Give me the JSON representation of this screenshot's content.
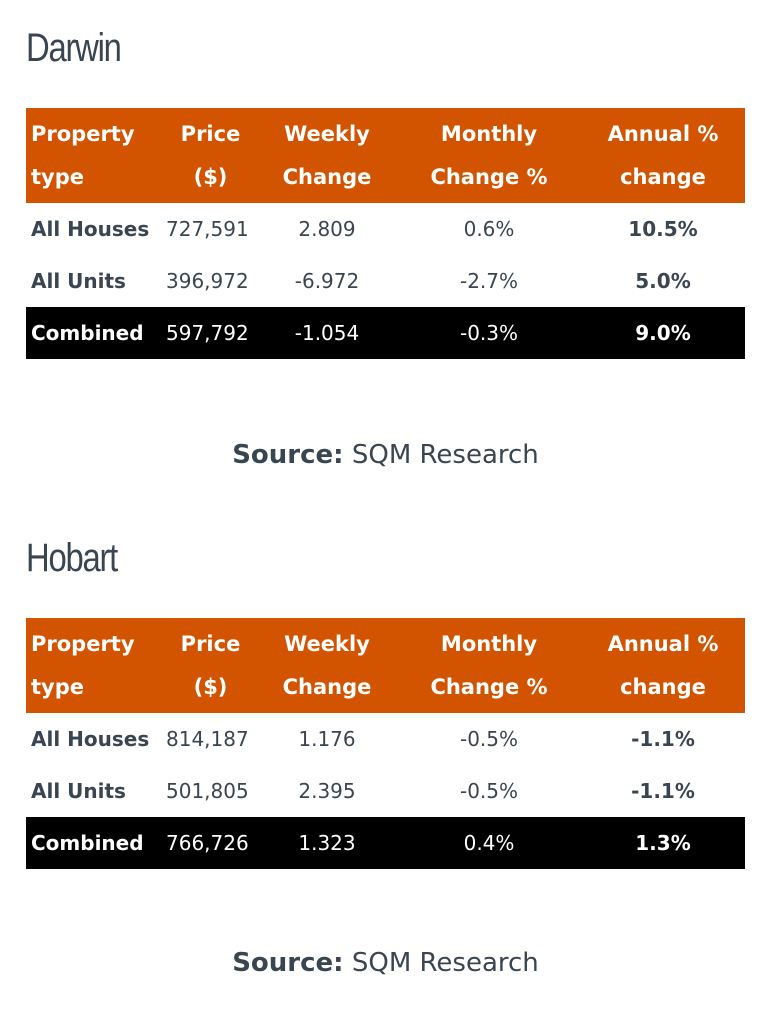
{
  "headers": {
    "property": "Property",
    "type": "type",
    "price": "Price",
    "price_unit": "($)",
    "weekly": "Weekly",
    "weekly2": "Change",
    "monthly": "Monthly",
    "monthly2": "Change %",
    "annual": "Annual %",
    "annual2": "change"
  },
  "darwin": {
    "title": "Darwin",
    "rows": [
      {
        "type": "All Houses",
        "price": "727,591",
        "weekly": "2.809",
        "monthly": "0.6%",
        "annual": "10.5%"
      },
      {
        "type": "All Units",
        "price": "396,972",
        "weekly": "-6.972",
        "monthly": "-2.7%",
        "annual": "5.0%"
      },
      {
        "type": "Combined",
        "price": "597,792",
        "weekly": "-1.054",
        "monthly": "-0.3%",
        "annual": "9.0%"
      }
    ],
    "source_label": "Source:",
    "source_value": "SQM Research"
  },
  "hobart": {
    "title": "Hobart",
    "rows": [
      {
        "type": "All Houses",
        "price": "814,187",
        "weekly": "1.176",
        "monthly": "-0.5%",
        "annual": "-1.1%"
      },
      {
        "type": "All Units",
        "price": "501,805",
        "weekly": "2.395",
        "monthly": "-0.5%",
        "annual": "-1.1%"
      },
      {
        "type": "Combined",
        "price": "766,726",
        "weekly": "1.323",
        "monthly": "0.4%",
        "annual": "1.3%"
      }
    ],
    "source_label": "Source:",
    "source_value": "SQM Research"
  },
  "colors": {
    "header_bg": "#d35400",
    "combined_bg": "#000000",
    "text": "#3a4552"
  }
}
